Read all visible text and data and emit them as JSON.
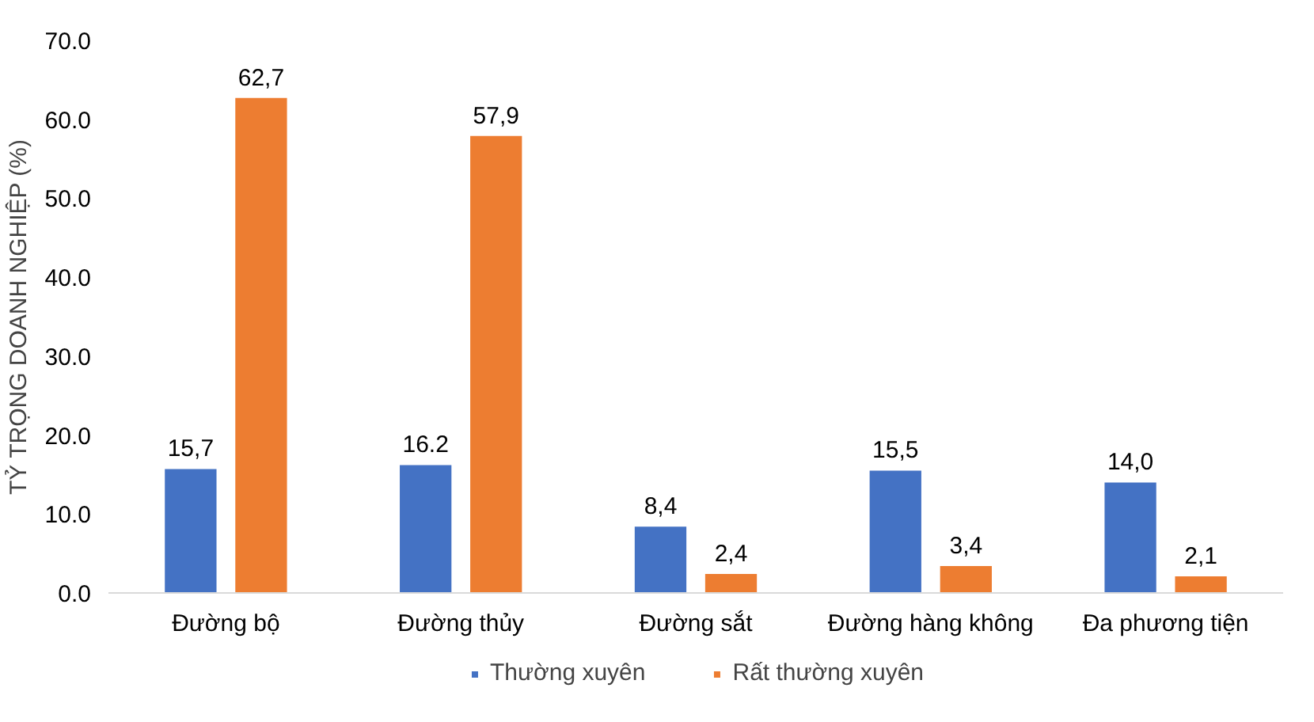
{
  "chart_data": {
    "type": "bar",
    "ylabel": "TỶ TRỌNG DOANH NGHIỆP (%)",
    "categories": [
      "Đường bộ",
      "Đường thủy",
      "Đường sắt",
      "Đường hàng không",
      "Đa phương tiện"
    ],
    "series": [
      {
        "name": "Thường xuyên",
        "color": "#4472c4",
        "values": [
          15.7,
          16.2,
          8.4,
          15.5,
          14.0
        ],
        "value_labels": [
          "15,7",
          "16.2",
          "8,4",
          "15,5",
          "14,0"
        ]
      },
      {
        "name": "Rất thường xuyên",
        "color": "#ed7d31",
        "values": [
          62.7,
          57.9,
          2.4,
          3.4,
          2.1
        ],
        "value_labels": [
          "62,7",
          "57,9",
          "2,4",
          "3,4",
          "2,1"
        ]
      }
    ],
    "ylim": [
      0,
      70
    ],
    "yticks": [
      {
        "value": 0,
        "label": "0.0"
      },
      {
        "value": 10,
        "label": "10.0"
      },
      {
        "value": 20,
        "label": "20.0"
      },
      {
        "value": 30,
        "label": "30.0"
      },
      {
        "value": 40,
        "label": "40.0"
      },
      {
        "value": 50,
        "label": "50.0"
      },
      {
        "value": 60,
        "label": "60.0"
      },
      {
        "value": 70,
        "label": "70.0"
      }
    ],
    "grid": false,
    "legend": "bottom"
  }
}
